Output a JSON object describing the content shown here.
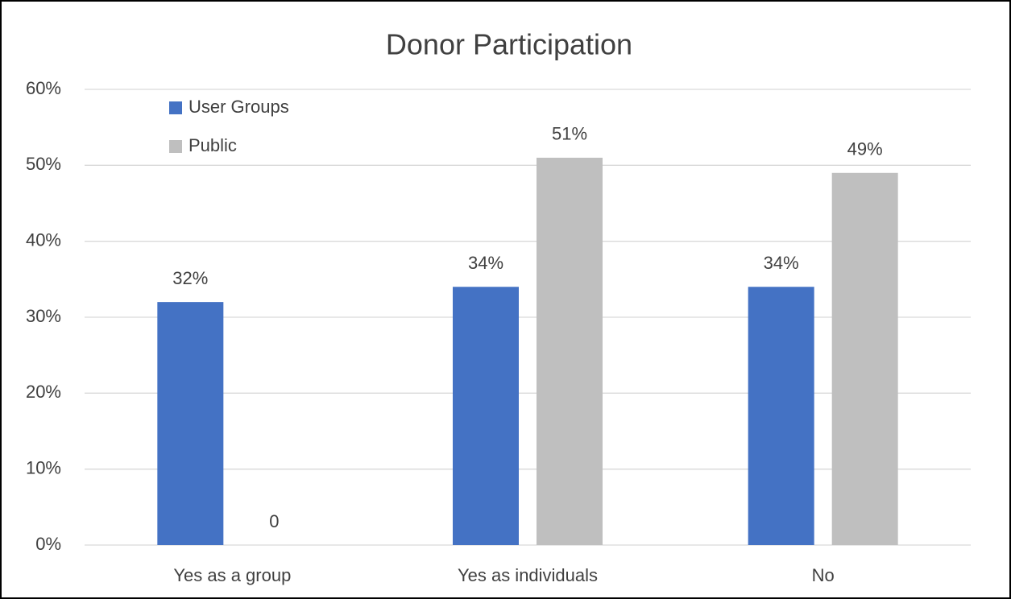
{
  "chart_data": {
    "type": "bar",
    "title": "Donor Participation",
    "categories": [
      "Yes as a group",
      "Yes as individuals",
      "No"
    ],
    "series": [
      {
        "name": "User Groups",
        "color": "#4472c4",
        "values": [
          32,
          34,
          34
        ],
        "value_labels": [
          "32%",
          "34%",
          "34%"
        ]
      },
      {
        "name": "Public",
        "color": "#bfbfbf",
        "values": [
          0,
          51,
          49
        ],
        "value_labels": [
          "0",
          "51%",
          "49%"
        ]
      }
    ],
    "ylim": [
      0,
      60
    ],
    "yticks": [
      {
        "value": 0,
        "label": "0%"
      },
      {
        "value": 10,
        "label": "10%"
      },
      {
        "value": 20,
        "label": "20%"
      },
      {
        "value": 30,
        "label": "30%"
      },
      {
        "value": 40,
        "label": "40%"
      },
      {
        "value": 50,
        "label": "50%"
      },
      {
        "value": 60,
        "label": "60%"
      }
    ],
    "grid": true,
    "legend": "top-left"
  }
}
